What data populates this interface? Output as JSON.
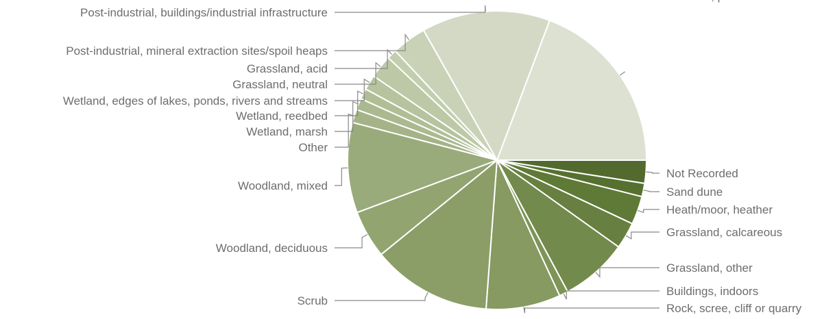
{
  "chart_data": {
    "type": "pie",
    "title": "",
    "start": "3 o'clock, clockwise",
    "slices": [
      {
        "label": "Not Recorded",
        "value": 2.6,
        "color": "#526a2e"
      },
      {
        "label": "Sand dune",
        "value": 1.5,
        "color": "#56702f"
      },
      {
        "label": "Heath/moor, heather",
        "value": 3.2,
        "color": "#5e7a36"
      },
      {
        "label": "Grassland, calcareous",
        "value": 3.0,
        "color": "#677f40"
      },
      {
        "label": "Grassland, other",
        "value": 7.6,
        "color": "#728a4b"
      },
      {
        "label": "Buildings, indoors",
        "value": 1.0,
        "color": "#7e9458"
      },
      {
        "label": "Rock, scree, cliff or quarry",
        "value": 8.4,
        "color": "#869a61"
      },
      {
        "label": "Scrub",
        "value": 13.5,
        "color": "#8b9e68"
      },
      {
        "label": "Woodland, deciduous",
        "value": 5.4,
        "color": "#92a570"
      },
      {
        "label": "Woodland, mixed",
        "value": 10.2,
        "color": "#9aab7b"
      },
      {
        "label": "Other",
        "value": 1.5,
        "color": "#a4b388"
      },
      {
        "label": "Wetland, marsh",
        "value": 1.3,
        "color": "#aab98f"
      },
      {
        "label": "Wetland, reedbed",
        "value": 1.2,
        "color": "#b0be96"
      },
      {
        "label": "Wetland, edges of lakes, ponds, rivers and streams",
        "value": 1.7,
        "color": "#b6c39e"
      },
      {
        "label": "Grassland, neutral",
        "value": 2.6,
        "color": "#bdc8a6"
      },
      {
        "label": "Grassland, acid",
        "value": 1.1,
        "color": "#c3ceae"
      },
      {
        "label": "Post-industrial, mineral extraction sites/spoil heaps",
        "value": 3.9,
        "color": "#c9d2b7"
      },
      {
        "label": "Post-industrial, buildings/industrial infrastructure",
        "value": 14.5,
        "color": "#d3d9c5"
      },
      {
        "label": "Gardens, parks",
        "value": 20.1,
        "color": "#dce1d2"
      }
    ]
  }
}
